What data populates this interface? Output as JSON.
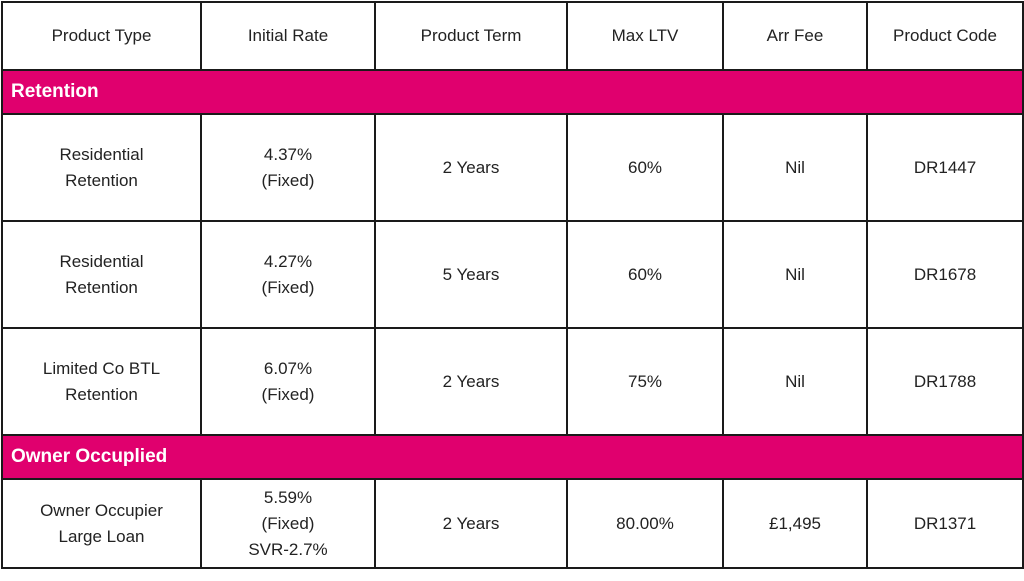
{
  "headers": [
    "Product Type",
    "Initial Rate",
    "Product Term",
    "Max LTV",
    "Arr Fee",
    "Product Code"
  ],
  "sections": [
    {
      "title": "Retention",
      "rows": [
        {
          "product_type": [
            "Residential",
            "Retention"
          ],
          "initial_rate": [
            "4.37%",
            "(Fixed)"
          ],
          "term": "2 Years",
          "max_ltv": "60%",
          "arr_fee": "Nil",
          "code": "DR1447"
        },
        {
          "product_type": [
            "Residential",
            "Retention"
          ],
          "initial_rate": [
            "4.27%",
            "(Fixed)"
          ],
          "term": "5 Years",
          "max_ltv": "60%",
          "arr_fee": "Nil",
          "code": "DR1678"
        },
        {
          "product_type": [
            "Limited Co BTL",
            "Retention"
          ],
          "initial_rate": [
            "6.07%",
            "(Fixed)"
          ],
          "term": "2 Years",
          "max_ltv": "75%",
          "arr_fee": "Nil",
          "code": "DR1788"
        }
      ]
    },
    {
      "title": "Owner Occuplied",
      "rows": [
        {
          "product_type": [
            "Owner Occupier",
            "Large Loan"
          ],
          "initial_rate": [
            "5.59%",
            "(Fixed)",
            "SVR-2.7%"
          ],
          "term": "2 Years",
          "max_ltv": "80.00%",
          "arr_fee": "£1,495",
          "code": "DR1371"
        }
      ]
    }
  ],
  "colors": {
    "accent": "#e0006e",
    "border": "#1a1a1a"
  }
}
